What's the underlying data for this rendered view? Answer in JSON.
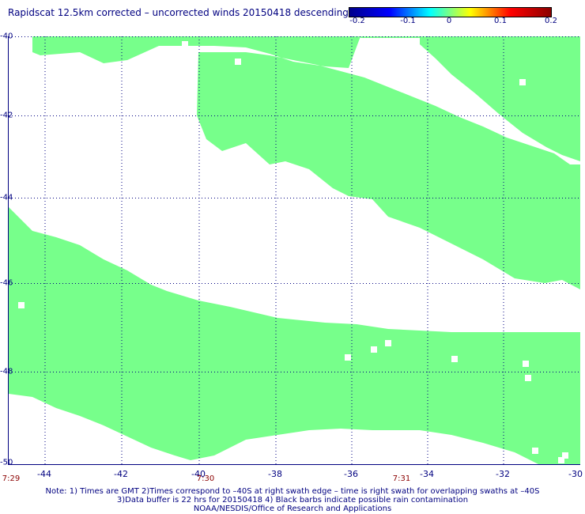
{
  "title": "Rapidscat 12.5km corrected – uncorrected winds 20150418 descending",
  "colorbar": {
    "labels": [
      "-0.2",
      "-0.1",
      "0",
      "0.1",
      "0.2"
    ],
    "colors": [
      "#00008b",
      "#0000ff",
      "#00ffff",
      "#ffff00",
      "#ff0000",
      "#8b0000"
    ]
  },
  "lat_labels": [
    "-40",
    "-42",
    "-44",
    "-46",
    "-48",
    "-50"
  ],
  "lon_labels": [
    "-44",
    "-42",
    "-40",
    "-38",
    "-36",
    "-34",
    "-32",
    "-30"
  ],
  "time_labels": [
    "7:29",
    "7:30",
    "7:31"
  ],
  "swath_color": "#77ff8b",
  "notes": [
    "Note: 1) Times are GMT 2)Times correspond to –40S at right swath edge – time is right swath for overlapping swaths at –40S",
    "3)Data buffer is 22 hrs for 20150418 4) Black barbs indicate possible rain contamination",
    "NOAA/NESDIS/Office of Research and Applications"
  ]
}
